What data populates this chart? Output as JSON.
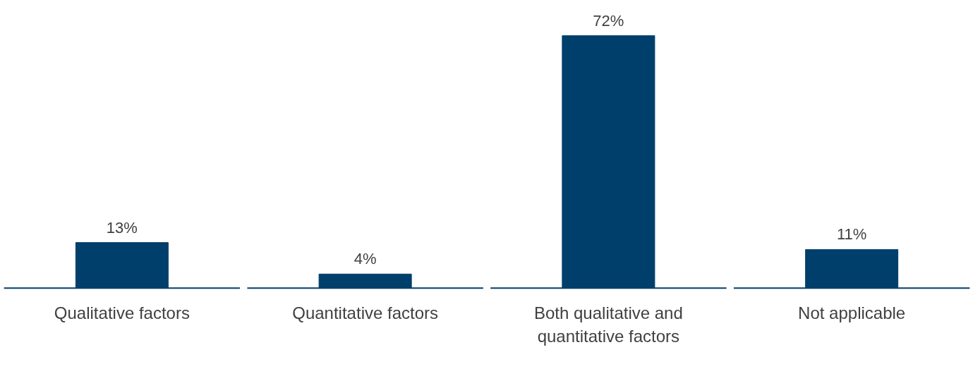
{
  "chart_data": {
    "type": "bar",
    "categories": [
      "Qualitative factors",
      "Quantitative factors",
      "Both qualitative and quantitative factors",
      "Not applicable"
    ],
    "values": [
      13,
      4,
      72,
      11
    ],
    "value_labels": [
      "13%",
      "4%",
      "72%",
      "11%"
    ],
    "color": "#003f6b"
  }
}
